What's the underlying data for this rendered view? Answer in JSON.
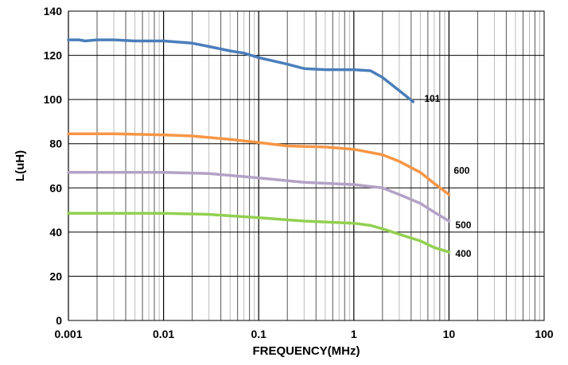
{
  "chart_data": {
    "type": "line",
    "xlabel": "FREQUENCY(MHz)",
    "ylabel": "L(uH)",
    "x_scale": "log",
    "xlim": [
      0.001,
      100
    ],
    "ylim": [
      0,
      140
    ],
    "x_ticks": [
      "0.001",
      "0.01",
      "0.1",
      "1",
      "10",
      "100"
    ],
    "y_ticks": [
      "0",
      "20",
      "40",
      "60",
      "80",
      "100",
      "120",
      "140"
    ],
    "grid": true,
    "legend": "none",
    "series": [
      {
        "name": "101",
        "color": "#4a7ebb",
        "x": [
          0.001,
          0.0013,
          0.0015,
          0.002,
          0.003,
          0.005,
          0.01,
          0.02,
          0.03,
          0.05,
          0.07,
          0.1,
          0.2,
          0.3,
          0.5,
          1,
          1.5,
          2,
          3,
          4.2
        ],
        "y": [
          127,
          127,
          126.5,
          127,
          127,
          126.5,
          126.5,
          125.5,
          124,
          122,
          121,
          119,
          116,
          114,
          113.5,
          113.5,
          113,
          110,
          104,
          99
        ]
      },
      {
        "name": "600",
        "color": "#f79646",
        "x": [
          0.001,
          0.003,
          0.01,
          0.02,
          0.05,
          0.1,
          0.2,
          0.5,
          1,
          2,
          3,
          5,
          7,
          10
        ],
        "y": [
          84.5,
          84.5,
          84,
          83.5,
          82,
          80.5,
          79,
          78.5,
          77.5,
          75,
          72,
          67,
          62,
          57
        ]
      },
      {
        "name": "500",
        "color": "#b3a2c7",
        "x": [
          0.001,
          0.003,
          0.01,
          0.03,
          0.1,
          0.3,
          1,
          2,
          3,
          5,
          7,
          10
        ],
        "y": [
          67,
          67,
          67,
          66.5,
          64.5,
          62.5,
          61.5,
          60,
          57,
          53,
          49,
          45
        ]
      },
      {
        "name": "400",
        "color": "#92d050",
        "x": [
          0.001,
          0.003,
          0.01,
          0.03,
          0.1,
          0.3,
          1,
          1.5,
          2,
          3,
          5,
          7,
          10
        ],
        "y": [
          48.5,
          48.5,
          48.5,
          48,
          46.5,
          45,
          44,
          43,
          41.5,
          39,
          36,
          33,
          31
        ]
      }
    ]
  }
}
